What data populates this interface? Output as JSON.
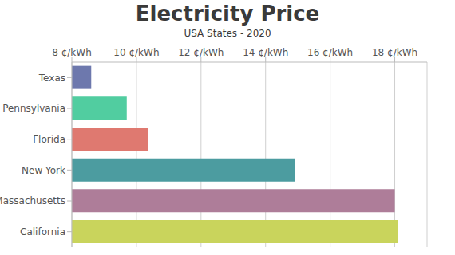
{
  "chart_data": {
    "type": "bar",
    "title": "Electricity Price",
    "subtitle": "USA States - 2020",
    "orientation": "horizontal",
    "categories": [
      "Texas",
      "Pennsylvania",
      "Florida",
      "New York",
      "Massachusetts",
      "California"
    ],
    "values": [
      8.6,
      9.7,
      10.35,
      14.9,
      18.0,
      18.1
    ],
    "colors": [
      "#6d78ad",
      "#51cda0",
      "#df7970",
      "#4c9ca0",
      "#ae7d99",
      "#c9d45c"
    ],
    "xlim": [
      8,
      19
    ],
    "xticks": [
      {
        "value": 8,
        "label": "8 ¢/kWh"
      },
      {
        "value": 10,
        "label": "10 ¢/kWh"
      },
      {
        "value": 12,
        "label": "12 ¢/kWh"
      },
      {
        "value": 14,
        "label": "14 ¢/kWh"
      },
      {
        "value": 16,
        "label": "16 ¢/kWh"
      },
      {
        "value": 18,
        "label": "18 ¢/kWh"
      }
    ],
    "grid": true
  }
}
